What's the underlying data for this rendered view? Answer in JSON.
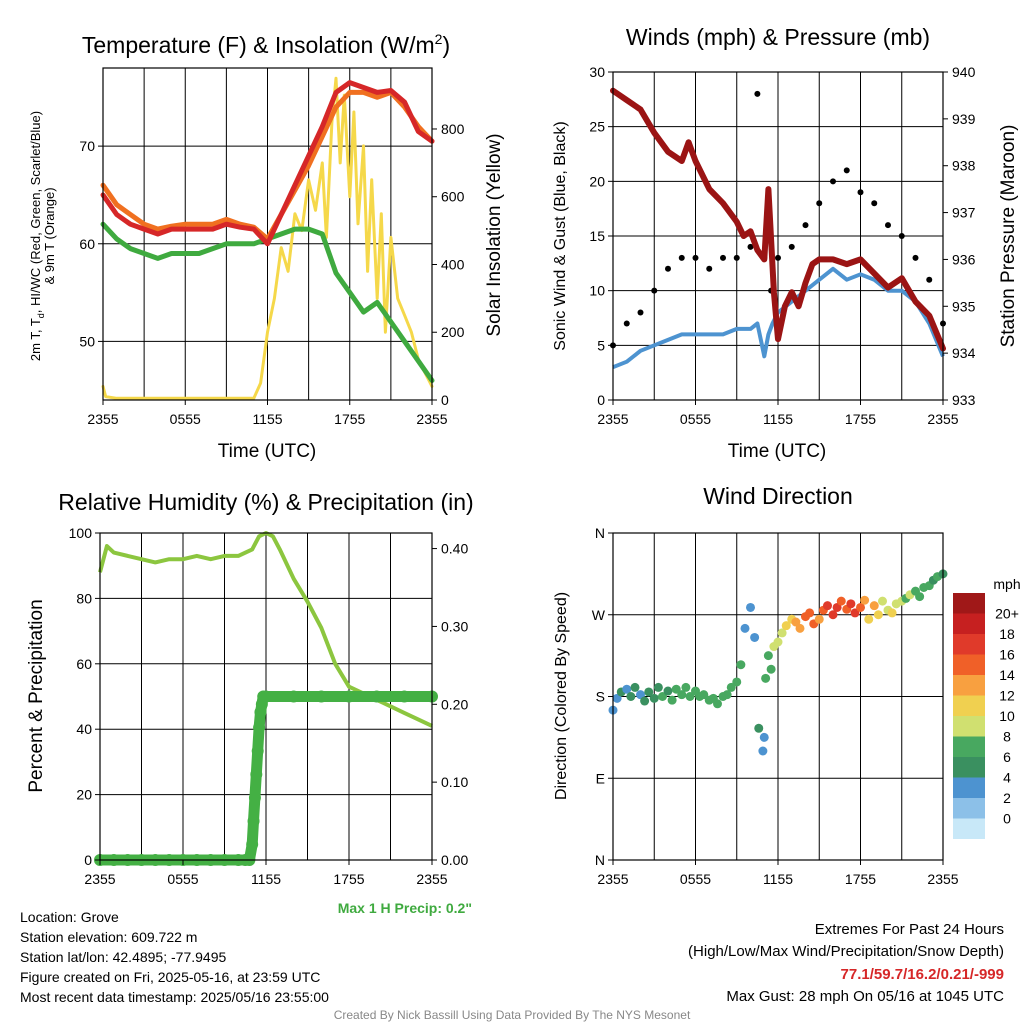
{
  "colors": {
    "temp_red": "#d62728",
    "temp_orange": "#f07020",
    "dewpoint_green": "#3faa3f",
    "insolation_yellow": "#f5d84a",
    "sonic_blue": "#4d93d0",
    "gust_black": "#000000",
    "pressure_maroon": "#9b1414",
    "rh_green": "#8cc63f",
    "precip_green": "#44b044",
    "footer_gray": "#888888",
    "extreme_red": "#d62728"
  },
  "chart_data": [
    {
      "id": "temperature",
      "type": "line",
      "title": "Temperature (F) & Insolation (W/m²)",
      "xlabel": "Time (UTC)",
      "ylabel": "2m T, Td, HI/WC (Red, Green, Scarlet/Blue) & 9m T (Orange)",
      "ylabel_line1": "2m T, Td, HI/WC (Red, Green, Scarlet/Blue)",
      "ylabel_line2": "& 9m T (Orange)",
      "ylabel_right": "Solar Insolation (Yellow)",
      "x_ticks": [
        "2355",
        "0555",
        "1155",
        "1755",
        "2355"
      ],
      "ylim": [
        44,
        78
      ],
      "y_ticks": [
        50,
        60,
        70
      ],
      "ylim_right": [
        0,
        980
      ],
      "y_ticks_right": [
        0,
        200,
        400,
        600,
        800
      ],
      "x_hours": [
        0,
        24
      ],
      "series": [
        {
          "name": "2m T",
          "color": "#d62728",
          "x": [
            0,
            1,
            2,
            3,
            4,
            5,
            6,
            7,
            8,
            9,
            10,
            11,
            12,
            13,
            14,
            15,
            16,
            17,
            18,
            19,
            20,
            21,
            22,
            23,
            24
          ],
          "y": [
            65,
            63,
            62,
            61.5,
            61,
            61.5,
            61.5,
            61.5,
            61.5,
            62,
            61.7,
            61.5,
            60,
            63,
            66,
            69,
            72,
            75.5,
            76.5,
            76,
            75.5,
            75.7,
            74.5,
            71.5,
            70.5
          ]
        },
        {
          "name": "9m T",
          "color": "#f07020",
          "x": [
            0,
            1,
            2,
            3,
            4,
            5,
            6,
            7,
            8,
            9,
            10,
            11,
            12,
            13,
            14,
            15,
            16,
            17,
            18,
            19,
            20,
            21,
            22,
            23,
            24
          ],
          "y": [
            66,
            64,
            63,
            62,
            61.5,
            61.8,
            62,
            62,
            62,
            62.5,
            62,
            61.7,
            60.5,
            63,
            65.5,
            68,
            71,
            74,
            75.5,
            75.5,
            75,
            75.5,
            74,
            72,
            70.5
          ]
        },
        {
          "name": "Td",
          "color": "#3faa3f",
          "x": [
            0,
            1,
            2,
            3,
            4,
            5,
            6,
            7,
            8,
            9,
            10,
            11,
            12,
            13,
            14,
            15,
            16,
            17,
            18,
            19,
            20,
            21,
            22,
            23,
            24
          ],
          "y": [
            62,
            60.5,
            59.5,
            59,
            58.5,
            59,
            59,
            59,
            59.5,
            60,
            60,
            60,
            60.5,
            61,
            61.5,
            61.5,
            61,
            57,
            55,
            53,
            54,
            52,
            50,
            48,
            46
          ]
        },
        {
          "name": "Solar Insolation",
          "color": "#f5d84a",
          "axis": "right",
          "x": [
            0,
            0.2,
            1,
            2,
            3,
            4,
            5,
            6,
            7,
            8,
            9,
            10,
            11,
            11.5,
            12,
            12.5,
            13,
            13.5,
            14,
            14.5,
            15,
            15.5,
            16,
            16.3,
            16.7,
            17,
            17.3,
            17.6,
            18,
            18.3,
            18.6,
            19,
            19.3,
            19.6,
            20,
            20.3,
            20.6,
            21,
            21.5,
            22,
            22.5,
            23,
            23.5,
            24
          ],
          "y": [
            40,
            10,
            5,
            5,
            5,
            5,
            5,
            5,
            5,
            5,
            5,
            5,
            5,
            50,
            200,
            300,
            450,
            380,
            550,
            500,
            650,
            560,
            700,
            480,
            820,
            950,
            700,
            900,
            600,
            850,
            520,
            750,
            380,
            650,
            300,
            550,
            200,
            480,
            300,
            250,
            200,
            120,
            80,
            40
          ]
        }
      ]
    },
    {
      "id": "winds",
      "type": "line",
      "title": "Winds (mph) & Pressure (mb)",
      "xlabel": "Time (UTC)",
      "ylabel": "Sonic Wind & Gust (Blue, Black)",
      "ylabel_right": "Station Pressure (Maroon)",
      "x_ticks": [
        "2355",
        "0555",
        "1155",
        "1755",
        "2355"
      ],
      "ylim": [
        0,
        30
      ],
      "y_ticks": [
        0,
        5,
        10,
        15,
        20,
        25,
        30
      ],
      "ylim_right": [
        933,
        940
      ],
      "y_ticks_right": [
        933,
        934,
        935,
        936,
        937,
        938,
        939,
        940
      ],
      "series": [
        {
          "name": "Sonic Wind",
          "color": "#4d93d0",
          "x": [
            0,
            1,
            2,
            3,
            4,
            5,
            6,
            7,
            8,
            9,
            10,
            10.5,
            11,
            11.3,
            11.6,
            12,
            12.5,
            13,
            14,
            15,
            16,
            17,
            18,
            19,
            20,
            21,
            22,
            23,
            24
          ],
          "y": [
            3,
            3.5,
            4.5,
            5,
            5.5,
            6,
            6,
            6,
            6,
            6.5,
            6.5,
            7,
            4,
            6,
            7,
            8,
            8.5,
            9,
            10,
            11,
            12,
            11,
            11.5,
            11,
            10,
            10,
            9,
            7,
            4
          ]
        },
        {
          "name": "Gust",
          "color": "#000000",
          "x": [
            0,
            1,
            2,
            3,
            4,
            5,
            6,
            7,
            8,
            9,
            10,
            10.5,
            11,
            11.5,
            12,
            13,
            14,
            15,
            16,
            17,
            18,
            19,
            20,
            21,
            22,
            23,
            24
          ],
          "y": [
            5,
            7,
            8,
            10,
            12,
            13,
            13,
            12,
            13,
            13,
            14,
            28,
            13,
            10,
            13,
            14,
            16,
            18,
            20,
            21,
            19,
            18,
            16,
            15,
            13,
            11,
            7
          ]
        },
        {
          "name": "Station Pressure",
          "color": "#9b1414",
          "axis": "right",
          "x": [
            0,
            1,
            2,
            3,
            4,
            5,
            5.5,
            6,
            7,
            8,
            9,
            9.5,
            10,
            10.5,
            11,
            11.3,
            11.7,
            12,
            12.5,
            13,
            13.5,
            14,
            14.5,
            15,
            16,
            17,
            18,
            19,
            20,
            21,
            22,
            23,
            24
          ],
          "y": [
            939.6,
            939.4,
            939.2,
            938.7,
            938.3,
            938.1,
            938.5,
            938.1,
            937.5,
            937.2,
            936.8,
            936.5,
            936.6,
            936.2,
            936.0,
            937.5,
            935.3,
            934.3,
            935.0,
            935.3,
            935.0,
            935.5,
            935.9,
            936.0,
            936.0,
            935.9,
            936.0,
            935.7,
            935.4,
            935.6,
            935.1,
            934.8,
            934.1
          ]
        }
      ]
    },
    {
      "id": "humidity",
      "type": "line",
      "title": "Relative Humidity (%) & Precipitation (in)",
      "ylabel": "Percent & Precipitation",
      "x_ticks": [
        "2355",
        "0555",
        "1155",
        "1755",
        "2355"
      ],
      "ylim": [
        0,
        100
      ],
      "y_ticks": [
        0,
        20,
        40,
        60,
        80,
        100
      ],
      "ylim_right": [
        0,
        0.42
      ],
      "y_ticks_right": [
        "0.00",
        "0.10",
        "0.20",
        "0.30",
        "0.40"
      ],
      "series": [
        {
          "name": "Relative Humidity",
          "color": "#8cc63f",
          "x": [
            0,
            0.5,
            1,
            2,
            3,
            4,
            5,
            6,
            7,
            8,
            9,
            10,
            11,
            11.5,
            12,
            12.5,
            13,
            14,
            15,
            16,
            17,
            18,
            19,
            20,
            21,
            22,
            23,
            24
          ],
          "y": [
            88,
            96,
            94,
            93,
            92,
            91,
            92,
            92,
            93,
            92,
            93,
            93,
            95,
            99,
            100,
            99,
            95,
            86,
            79,
            71,
            60,
            53,
            51,
            49,
            47,
            45,
            43,
            41
          ]
        },
        {
          "name": "Precipitation",
          "color": "#44b044",
          "axis": "right",
          "x": [
            0,
            1,
            2,
            3,
            4,
            5,
            6,
            7,
            8,
            9,
            10,
            10.5,
            10.8,
            11,
            11.1,
            11.2,
            11.3,
            11.4,
            11.5,
            11.6,
            11.7,
            11.8,
            12,
            14,
            16,
            18,
            20,
            22,
            24
          ],
          "y": [
            0,
            0,
            0,
            0,
            0,
            0,
            0,
            0,
            0,
            0,
            0,
            0,
            0,
            0.02,
            0.05,
            0.08,
            0.11,
            0.14,
            0.17,
            0.19,
            0.2,
            0.21,
            0.21,
            0.21,
            0.21,
            0.21,
            0.21,
            0.21,
            0.21
          ]
        }
      ]
    },
    {
      "id": "wind_direction",
      "type": "scatter",
      "title": "Wind Direction",
      "ylabel": "Direction (Colored By Speed)",
      "x_ticks": [
        "2355",
        "0555",
        "1155",
        "1755",
        "2355"
      ],
      "y_ticks": [
        "N",
        "E",
        "S",
        "W",
        "N"
      ],
      "ylim": [
        0,
        360
      ],
      "colorbar_title": "mph",
      "colorbar_labels": [
        "20+",
        "18",
        "16",
        "14",
        "12",
        "10",
        "8",
        "6",
        "4",
        "2",
        "0"
      ],
      "colorbar_colors": [
        "#a01818",
        "#c62020",
        "#e03a2a",
        "#f06028",
        "#f8a040",
        "#f0d050",
        "#d0e070",
        "#48a860",
        "#3a9060",
        "#4d93d0",
        "#8cc0e8",
        "#c8e8f8"
      ],
      "points": {
        "x": [
          0,
          0.3,
          0.6,
          1,
          1.3,
          1.6,
          2,
          2.3,
          2.6,
          3,
          3.3,
          3.6,
          4,
          4.3,
          4.6,
          5,
          5.3,
          5.6,
          6,
          6.3,
          6.6,
          7,
          7.3,
          7.6,
          8,
          8.3,
          8.6,
          9,
          9.3,
          9.6,
          10,
          10.3,
          10.6,
          10.9,
          11,
          11.1,
          11.3,
          11.5,
          11.7,
          12,
          12.3,
          12.6,
          13,
          13.3,
          13.6,
          14,
          14.3,
          14.6,
          15,
          15.3,
          15.6,
          16,
          16.3,
          16.6,
          17,
          17.3,
          17.6,
          18,
          18.3,
          18.6,
          19,
          19.3,
          19.6,
          20,
          20.3,
          20.6,
          21,
          21.3,
          21.6,
          22,
          22.3,
          22.6,
          23,
          23.3,
          23.6,
          24
        ],
        "y": [
          165,
          178,
          185,
          188,
          180,
          190,
          182,
          175,
          185,
          178,
          190,
          180,
          186,
          176,
          188,
          182,
          190,
          180,
          186,
          180,
          182,
          176,
          178,
          172,
          180,
          182,
          190,
          196,
          215,
          255,
          278,
          245,
          145,
          120,
          135,
          200,
          225,
          210,
          235,
          240,
          250,
          258,
          265,
          262,
          255,
          268,
          272,
          260,
          265,
          275,
          280,
          270,
          278,
          285,
          276,
          282,
          272,
          278,
          286,
          265,
          280,
          270,
          285,
          275,
          272,
          282,
          285,
          288,
          292,
          296,
          290,
          300,
          302,
          308,
          312,
          315
        ],
        "speed": [
          3,
          3,
          4,
          3,
          4,
          4,
          3,
          4,
          5,
          4,
          5,
          6,
          5,
          6,
          6,
          6,
          6,
          7,
          6,
          7,
          6,
          7,
          7,
          6,
          7,
          7,
          6,
          6,
          6,
          3,
          2,
          3,
          4,
          2,
          3,
          6,
          6,
          6,
          8,
          8,
          9,
          10,
          11,
          12,
          13,
          14,
          15,
          14,
          13,
          15,
          16,
          17,
          16,
          14,
          15,
          16,
          17,
          14,
          12,
          11,
          12,
          10,
          9,
          8,
          10,
          9,
          8,
          7,
          8,
          7,
          7,
          6,
          7,
          5,
          6,
          4
        ]
      }
    }
  ],
  "footer": {
    "location": "Location: Grove",
    "elevation": "Station elevation: 609.722 m",
    "latlon": "Station lat/lon: 42.4895; -77.9495",
    "created": "Figure created on Fri, 2025-05-16, at 23:59 UTC",
    "recent": "Most recent data timestamp: 2025/05/16 23:55:00",
    "credit": "Created By Nick Bassill Using Data Provided By The NYS Mesonet",
    "max_precip": "Max 1 H Precip: 0.2\"",
    "extremes_title": "Extremes For Past 24 Hours",
    "extremes_sub": "(High/Low/Max Wind/Precipitation/Snow Depth)",
    "extremes_values": "77.1/59.7/16.2/0.21/-999",
    "max_gust": "Max Gust: 28 mph On 05/16 at 1045 UTC"
  }
}
